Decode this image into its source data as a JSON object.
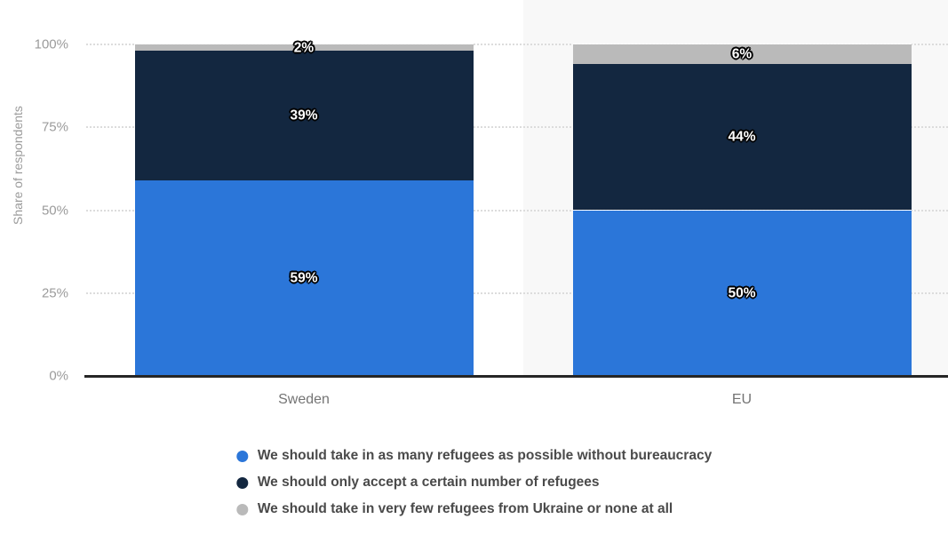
{
  "colors": {
    "series_blue": "#2b76d9",
    "series_navy": "#132740",
    "series_gray": "#bababa",
    "plot_band": "#f8f8f8",
    "gridline": "#dcdcdc",
    "axis_line": "#262626",
    "tick_text": "#9b9b9b",
    "category_text": "#747474",
    "legend_text": "#4a4a4a",
    "background": "#ffffff"
  },
  "chart_data": {
    "type": "bar",
    "subtype": "stacked-column-percent",
    "title": "",
    "xlabel": "",
    "ylabel": "Share of respondents",
    "ylim": [
      0,
      100
    ],
    "grid": "horizontal-dotted",
    "legend_position": "bottom-center",
    "categories": [
      "Sweden",
      "EU"
    ],
    "series": [
      {
        "name": "We should take in as many refugees as possible without bureaucracy",
        "color": "#2b76d9",
        "values": [
          59,
          50
        ]
      },
      {
        "name": "We should only accept a certain number of refugees",
        "color": "#132740",
        "values": [
          39,
          44
        ]
      },
      {
        "name": "We should take in very few refugees from Ukraine or none at all",
        "color": "#bababa",
        "values": [
          2,
          6
        ]
      }
    ],
    "data_labels": [
      [
        "59%",
        "39%",
        "2%"
      ],
      [
        "50%",
        "44%",
        "6%"
      ]
    ],
    "y_ticks": [
      {
        "label": "0%",
        "value": 0
      },
      {
        "label": "25%",
        "value": 25
      },
      {
        "label": "50%",
        "value": 50
      },
      {
        "label": "75%",
        "value": 75
      },
      {
        "label": "100%",
        "value": 100
      }
    ]
  }
}
